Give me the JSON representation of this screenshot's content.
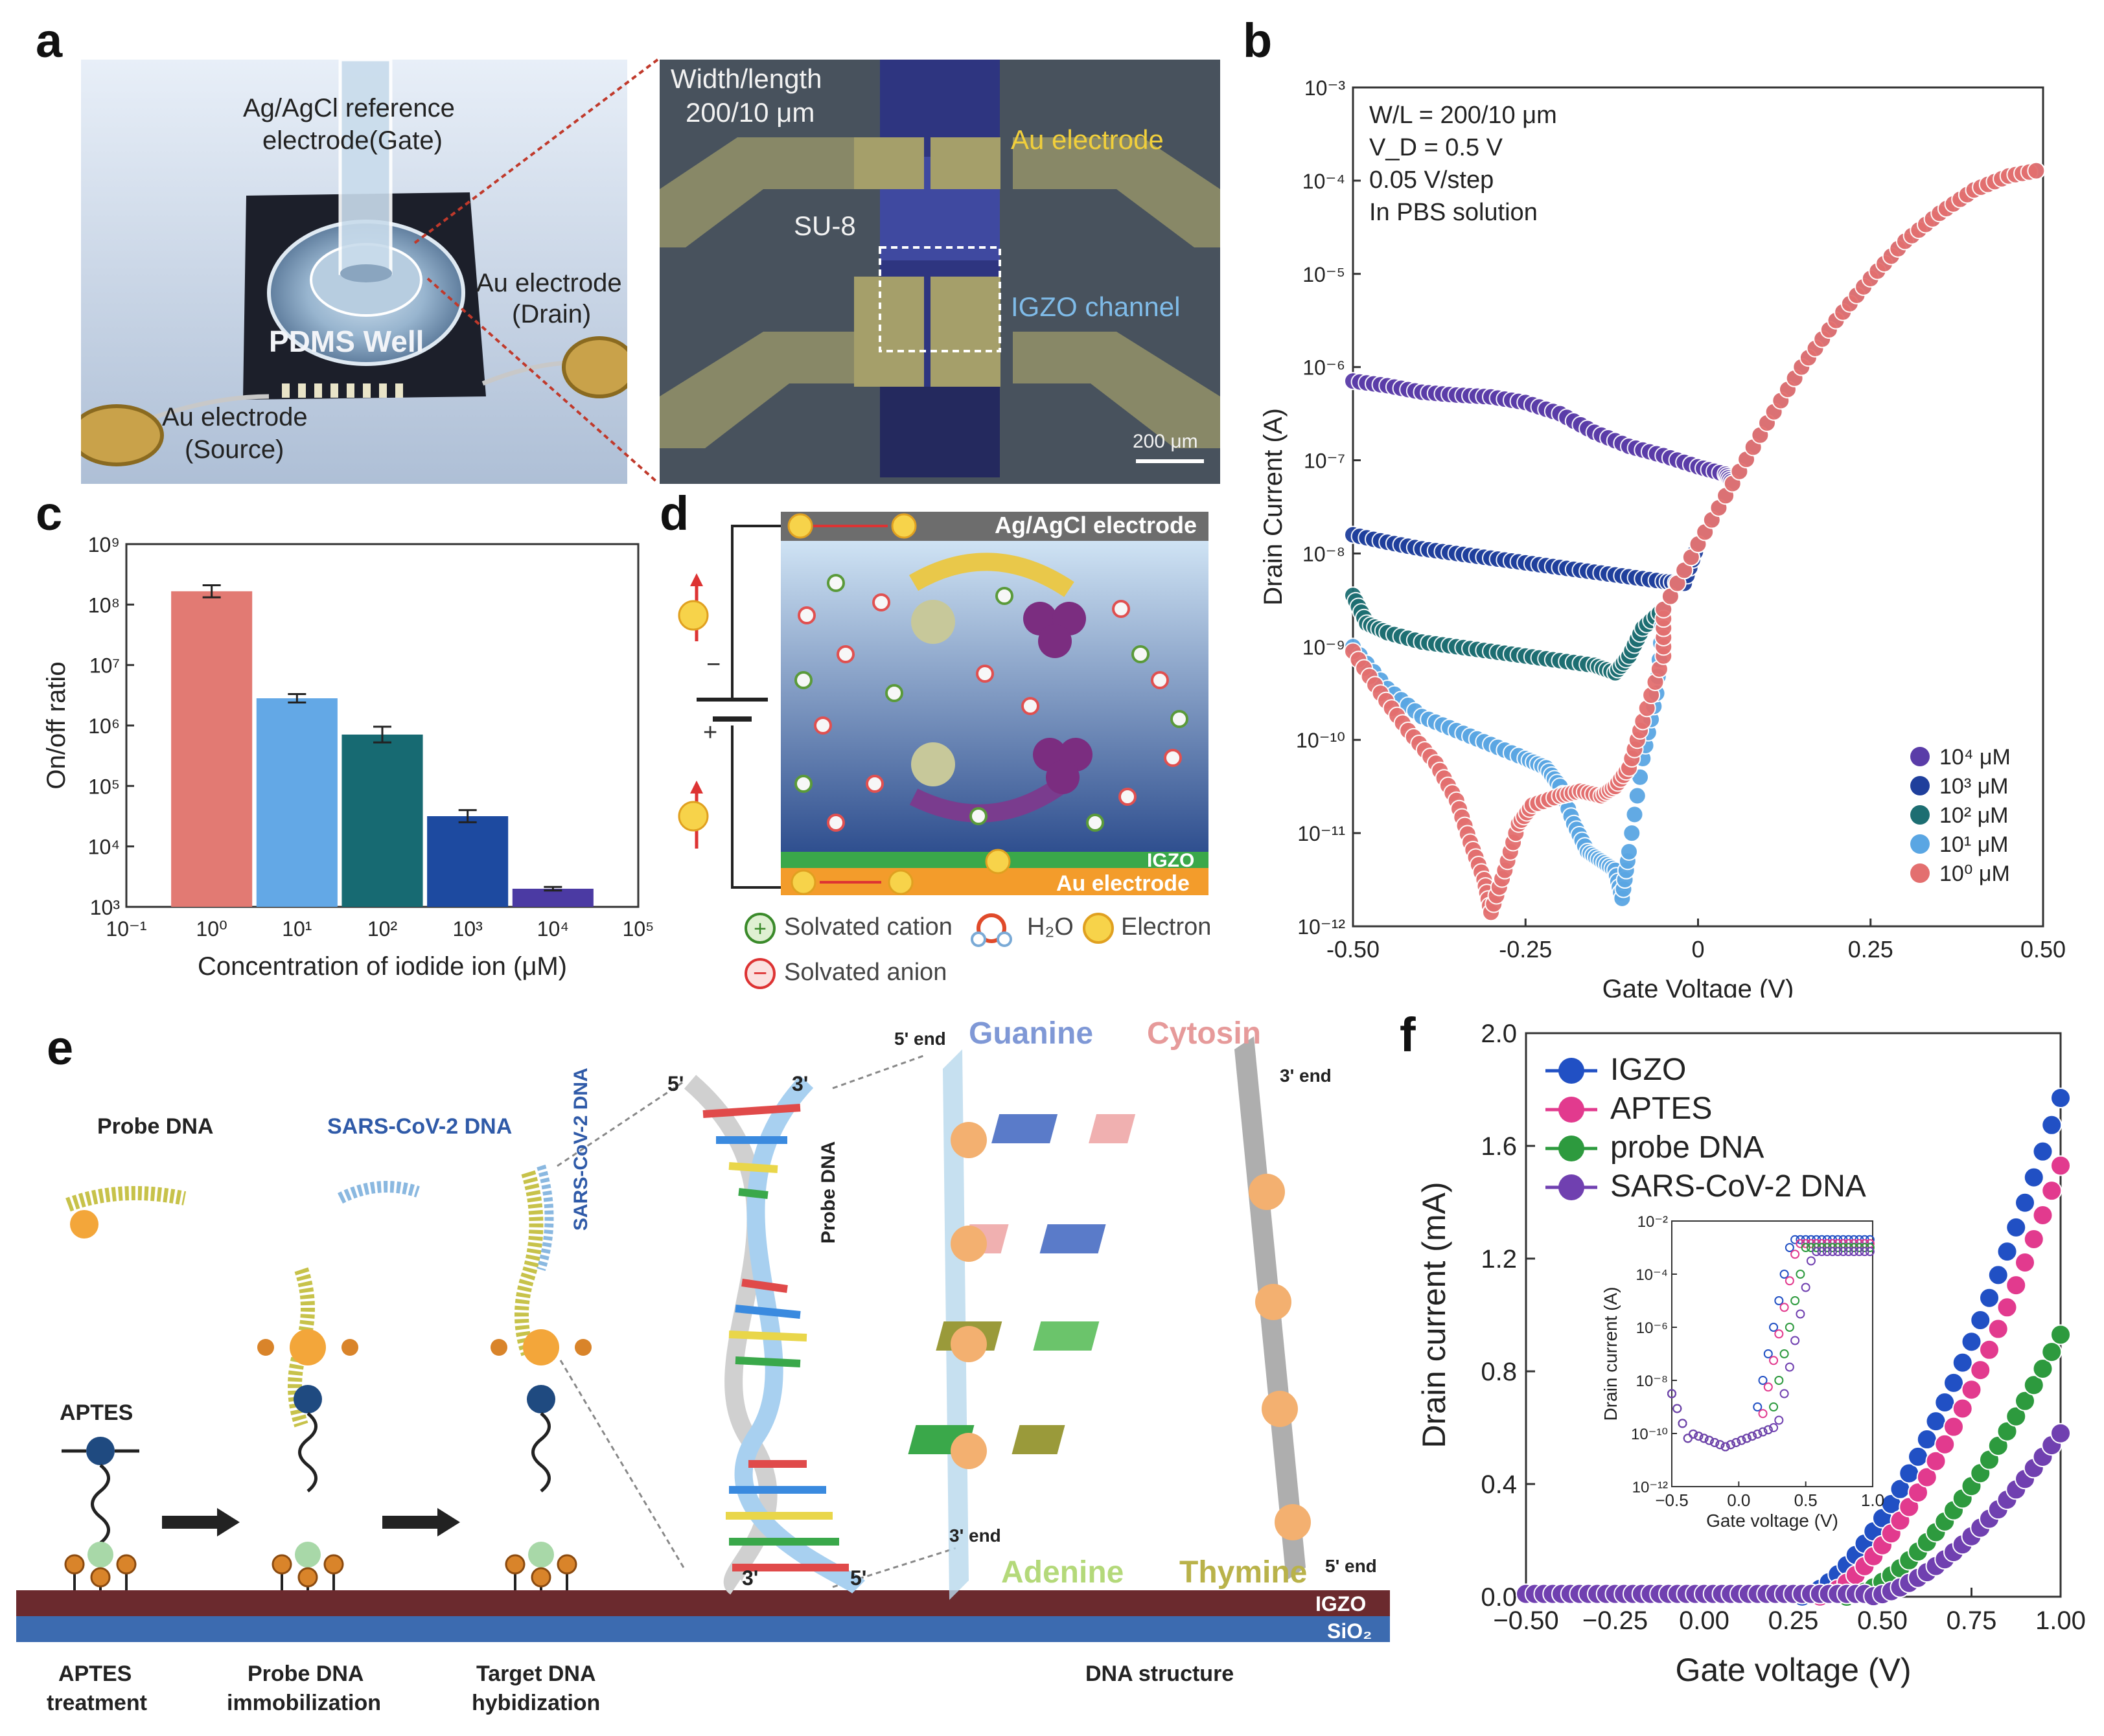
{
  "panels": {
    "a": "a",
    "b": "b",
    "c": "c",
    "d": "d",
    "e": "e",
    "f": "f"
  },
  "panel_a": {
    "photo_labels": {
      "reference": "Ag/AgCl reference",
      "gate": "electrode(Gate)",
      "drain_1": "Au electrode",
      "drain_2": "(Drain)",
      "pdms": "PDMS Well",
      "source_1": "Au electrode",
      "source_2": "(Source)"
    },
    "micro_labels": {
      "wl_1": "Width/length",
      "wl_2": "200/10 μm",
      "au": "Au electrode",
      "su8": "SU-8",
      "igzo": "IGZO channel",
      "scale": "200 μm"
    }
  },
  "panel_d": {
    "top": "Ag/AgCl electrode",
    "igzo": "IGZO",
    "au": "Au electrode",
    "minus": "−",
    "plus": "+",
    "legend": {
      "cation": "Solvated cation",
      "water": "H₂O",
      "electron": "Electron",
      "anion": "Solvated anion"
    }
  },
  "panel_e": {
    "probe_dna": "Probe DNA",
    "sars_dna": "SARS-CoV-2 DNA",
    "aptes": "APTES",
    "five_prime": "5'",
    "three_prime": "3'",
    "five_end": "5' end",
    "three_end": "3' end",
    "guanine": "Guanine",
    "cytosin": "Cytosin",
    "adenine": "Adenine",
    "thymine": "Thymine",
    "strand_sars": "SARS-CoV-2 DNA",
    "strand_probe": "Probe DNA",
    "igzo": "IGZO",
    "sio2": "SiO₂",
    "steps": {
      "s1a": "APTES",
      "s1b": "treatment",
      "s2a": "Probe DNA",
      "s2b": "immobilization",
      "s3a": "Target DNA",
      "s3b": "hybidization",
      "s4": "DNA structure"
    }
  },
  "chart_data": [
    {
      "id": "b",
      "type": "scatter",
      "title": "",
      "xlabel": "Gate Voltage (V)",
      "ylabel": "Drain Current (A)",
      "xlim": [
        -0.5,
        0.5
      ],
      "ylim_log10": [
        -12,
        -3
      ],
      "x_ticks": [
        "-0.50",
        "-0.25",
        "0",
        "0.25",
        "0.50"
      ],
      "y_ticks": [
        "10⁻¹²",
        "10⁻¹¹",
        "10⁻¹⁰",
        "10⁻⁹",
        "10⁻⁸",
        "10⁻⁷",
        "10⁻⁶",
        "10⁻⁵",
        "10⁻⁴",
        "10⁻³"
      ],
      "annotations": [
        "W/L = 200/10 μm",
        "V_D = 0.5 V",
        "0.05 V/step",
        "In PBS solution"
      ],
      "legend_position": "bottom-right",
      "series": [
        {
          "name": "10⁴ μM",
          "color": "#5a3ca8",
          "points": [
            [
              -0.5,
              -6.15
            ],
            [
              -0.45,
              -6.2
            ],
            [
              -0.4,
              -6.27
            ],
            [
              -0.35,
              -6.3
            ],
            [
              -0.3,
              -6.32
            ],
            [
              -0.25,
              -6.38
            ],
            [
              -0.2,
              -6.5
            ],
            [
              -0.15,
              -6.7
            ],
            [
              -0.1,
              -6.85
            ],
            [
              -0.05,
              -6.95
            ],
            [
              0.0,
              -7.07
            ],
            [
              0.04,
              -7.15
            ]
          ]
        },
        {
          "name": "10³ μM",
          "color": "#1f3f9c",
          "points": [
            [
              -0.5,
              -7.8
            ],
            [
              -0.45,
              -7.88
            ],
            [
              -0.4,
              -7.95
            ],
            [
              -0.35,
              -8.0
            ],
            [
              -0.3,
              -8.05
            ],
            [
              -0.25,
              -8.1
            ],
            [
              -0.2,
              -8.15
            ],
            [
              -0.15,
              -8.2
            ],
            [
              -0.1,
              -8.25
            ],
            [
              -0.05,
              -8.3
            ],
            [
              -0.02,
              -8.32
            ]
          ]
        },
        {
          "name": "10² μM",
          "color": "#1d6e72",
          "points": [
            [
              -0.5,
              -8.45
            ],
            [
              -0.48,
              -8.75
            ],
            [
              -0.45,
              -8.85
            ],
            [
              -0.4,
              -8.95
            ],
            [
              -0.35,
              -9.0
            ],
            [
              -0.3,
              -9.05
            ],
            [
              -0.25,
              -9.1
            ],
            [
              -0.2,
              -9.15
            ],
            [
              -0.15,
              -9.2
            ],
            [
              -0.12,
              -9.28
            ],
            [
              -0.1,
              -9.1
            ],
            [
              -0.08,
              -8.8
            ]
          ]
        },
        {
          "name": "10¹ μM",
          "color": "#5aa6e3",
          "points": [
            [
              -0.5,
              -9.0
            ],
            [
              -0.45,
              -9.45
            ],
            [
              -0.4,
              -9.75
            ],
            [
              -0.35,
              -9.9
            ],
            [
              -0.3,
              -10.05
            ],
            [
              -0.25,
              -10.2
            ],
            [
              -0.22,
              -10.3
            ],
            [
              -0.2,
              -10.5
            ],
            [
              -0.18,
              -10.9
            ],
            [
              -0.16,
              -11.2
            ],
            [
              -0.14,
              -11.3
            ],
            [
              -0.12,
              -11.4
            ],
            [
              -0.11,
              -11.7
            ],
            [
              -0.1,
              -11.2
            ],
            [
              -0.08,
              -10.2
            ],
            [
              -0.06,
              -9.5
            ]
          ]
        },
        {
          "name": "10⁰ μM",
          "color": "#e36f6f",
          "points": [
            [
              -0.5,
              -9.05
            ],
            [
              -0.46,
              -9.5
            ],
            [
              -0.42,
              -9.9
            ],
            [
              -0.38,
              -10.25
            ],
            [
              -0.35,
              -10.65
            ],
            [
              -0.33,
              -11.1
            ],
            [
              -0.31,
              -11.5
            ],
            [
              -0.3,
              -11.85
            ],
            [
              -0.28,
              -11.4
            ],
            [
              -0.26,
              -10.9
            ],
            [
              -0.24,
              -10.7
            ],
            [
              -0.2,
              -10.6
            ],
            [
              -0.17,
              -10.55
            ],
            [
              -0.14,
              -10.6
            ],
            [
              -0.12,
              -10.5
            ],
            [
              -0.1,
              -10.3
            ],
            [
              -0.08,
              -9.8
            ],
            [
              -0.05,
              -9.1
            ]
          ]
        }
      ],
      "shared_rising_branch": [
        [
          -0.05,
          -8.6
        ],
        [
          0.0,
          -7.9
        ],
        [
          0.05,
          -7.25
        ],
        [
          0.1,
          -6.6
        ],
        [
          0.15,
          -6.0
        ],
        [
          0.2,
          -5.5
        ],
        [
          0.25,
          -5.05
        ],
        [
          0.3,
          -4.65
        ],
        [
          0.35,
          -4.35
        ],
        [
          0.4,
          -4.1
        ],
        [
          0.45,
          -3.95
        ],
        [
          0.5,
          -3.88
        ]
      ]
    },
    {
      "id": "c",
      "type": "bar",
      "xlabel": "Concentration of iodide ion (μM)",
      "ylabel": "On/off ratio",
      "x_ticks": [
        "10⁻¹",
        "10⁰",
        "10¹",
        "10²",
        "10³",
        "10⁴",
        "10⁵"
      ],
      "y_ticks": [
        "10³",
        "10⁴",
        "10⁵",
        "10⁶",
        "10⁷",
        "10⁸",
        "10⁹"
      ],
      "ylim_log10": [
        3,
        9
      ],
      "categories": [
        "10⁰",
        "10¹",
        "10²",
        "10³",
        "10⁴"
      ],
      "values_log10": [
        8.22,
        6.45,
        5.85,
        4.5,
        3.3
      ],
      "errors_log10": [
        0.1,
        0.07,
        0.13,
        0.1,
        0.03
      ],
      "colors": [
        "#e27a73",
        "#63a8e6",
        "#176a72",
        "#1d4aa0",
        "#4b3aa3"
      ]
    },
    {
      "id": "f",
      "type": "scatter",
      "xlabel": "Gate voltage (V)",
      "ylabel": "Drain current (mA)",
      "xlim": [
        -0.5,
        1.0
      ],
      "ylim": [
        0.0,
        2.0
      ],
      "x_ticks": [
        "−0.50",
        "−0.25",
        "0.00",
        "0.25",
        "0.50",
        "0.75",
        "1.00"
      ],
      "y_ticks": [
        "0.0",
        "0.4",
        "0.8",
        "1.2",
        "1.6",
        "2.0"
      ],
      "legend_position": "top-left",
      "series": [
        {
          "name": "IGZO",
          "color": "#2150c4",
          "vth": 0.27,
          "vmax": 1.77
        },
        {
          "name": "APTES",
          "color": "#e23a8e",
          "vth": 0.32,
          "vmax": 1.53
        },
        {
          "name": "probe DNA",
          "color": "#2d9a3e",
          "vth": 0.4,
          "vmax": 0.93
        },
        {
          "name": "SARS-CoV-2 DNA",
          "color": "#7040b0",
          "vth": 0.46,
          "vmax": 0.58
        }
      ],
      "inset": {
        "xlabel": "Gate voltage (V)",
        "ylabel": "Drain current (A)",
        "x_ticks": [
          "−0.5",
          "0.0",
          "0.5",
          "1.0"
        ],
        "y_ticks": [
          "10⁻¹²",
          "10⁻¹⁰",
          "10⁻⁸",
          "10⁻⁶",
          "10⁻⁴",
          "10⁻²"
        ]
      }
    }
  ]
}
